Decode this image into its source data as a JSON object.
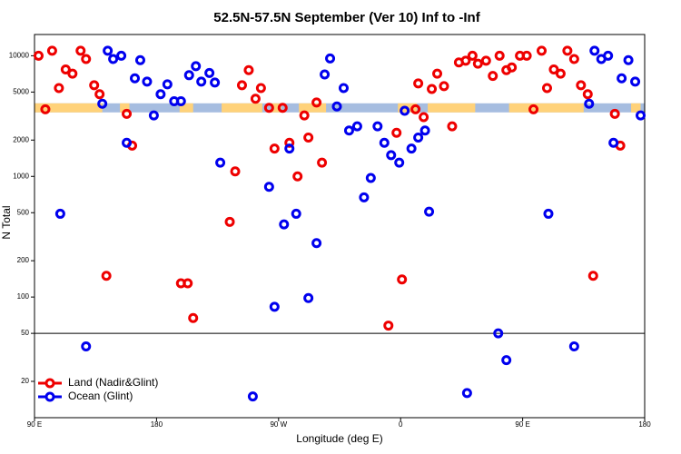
{
  "chart_data": {
    "type": "scatter",
    "title": "52.5N-57.5N September (Ver 10)   Inf to -Inf",
    "x_label": "Longitude (deg E)",
    "y_label": "N Total",
    "log_y": true,
    "xlim": [
      90,
      540
    ],
    "ylim": [
      10,
      15000
    ],
    "xticks": [
      {
        "value": 90,
        "label": "90 E"
      },
      180,
      {
        "value": 270,
        "label": "90 W"
      },
      {
        "value": 360,
        "label": "0"
      },
      {
        "value": 450,
        "label": "90 E"
      },
      {
        "value": 540,
        "label": "180"
      }
    ],
    "yticks": [
      20,
      50,
      100,
      200,
      500,
      1000,
      2000,
      5000,
      10000
    ],
    "hline": 50,
    "strip": {
      "value": 3700,
      "land_color": "#ffd27a",
      "ocean_color": "#a6bde0",
      "land": [
        [
          90,
          140
        ],
        [
          153,
          160
        ],
        [
          197,
          207
        ],
        [
          228,
          258
        ],
        [
          265,
          272
        ],
        [
          285,
          305
        ],
        [
          358,
          372
        ],
        [
          380,
          415
        ],
        [
          440,
          495
        ],
        [
          530,
          537
        ]
      ]
    },
    "legend": "bottom-left",
    "series": [
      {
        "name": "Land (Nadir&Glint)",
        "color": "#ee0000",
        "x": [
          93,
          98,
          103,
          108,
          113,
          118,
          124,
          128,
          134,
          138,
          143,
          158,
          162,
          198,
          203,
          207,
          234,
          238,
          243,
          248,
          253,
          257,
          263,
          267,
          273,
          278,
          284,
          289,
          292,
          298,
          302,
          351,
          357,
          361,
          371,
          373,
          377,
          383,
          387,
          392,
          398,
          403,
          408,
          413,
          417,
          423,
          428,
          433,
          438,
          442,
          448,
          453,
          458,
          464,
          468,
          473,
          478,
          483,
          488,
          493,
          498,
          502,
          518,
          522
        ],
        "values": [
          10000,
          3600,
          11000,
          5400,
          7700,
          7100,
          11000,
          9400,
          5700,
          4800,
          150,
          3300,
          1800,
          130,
          130,
          67,
          420,
          1100,
          5700,
          7600,
          4400,
          5400,
          3700,
          1700,
          3700,
          1900,
          1000,
          3200,
          2100,
          4100,
          1300,
          58,
          2300,
          140,
          3600,
          5900,
          3100,
          5300,
          7100,
          5600,
          2600,
          8800,
          9100,
          10000,
          8600,
          9100,
          6800,
          10000,
          7600,
          8000,
          10000,
          10000,
          3600,
          11000,
          5400,
          7700,
          7100,
          11000,
          9400,
          5700,
          4800,
          150,
          3300,
          1800
        ]
      },
      {
        "name": "Ocean (Glint)",
        "color": "#0000ee",
        "x": [
          109,
          128,
          140,
          144,
          148,
          154,
          158,
          164,
          168,
          173,
          178,
          183,
          188,
          193,
          198,
          204,
          209,
          213,
          219,
          223,
          227,
          251,
          263,
          267,
          274,
          278,
          283,
          292,
          298,
          304,
          308,
          313,
          318,
          322,
          328,
          333,
          338,
          343,
          348,
          353,
          359,
          363,
          368,
          373,
          378,
          381,
          409,
          432,
          438,
          469,
          488,
          499,
          503,
          508,
          513,
          517,
          523,
          528,
          533,
          537
        ],
        "values": [
          490,
          39,
          4000,
          11000,
          9400,
          10000,
          1900,
          6500,
          9200,
          6100,
          3200,
          4800,
          5800,
          4200,
          4200,
          6900,
          8200,
          6100,
          7200,
          6000,
          1300,
          15,
          820,
          83,
          400,
          1700,
          490,
          98,
          280,
          7000,
          9500,
          3800,
          5400,
          2400,
          2600,
          670,
          970,
          2600,
          1900,
          1500,
          1300,
          3500,
          1700,
          2100,
          2400,
          510,
          16,
          50,
          30,
          490,
          39,
          4000,
          11000,
          9400,
          10000,
          1900,
          6500,
          9200,
          6100,
          3200
        ]
      }
    ]
  }
}
